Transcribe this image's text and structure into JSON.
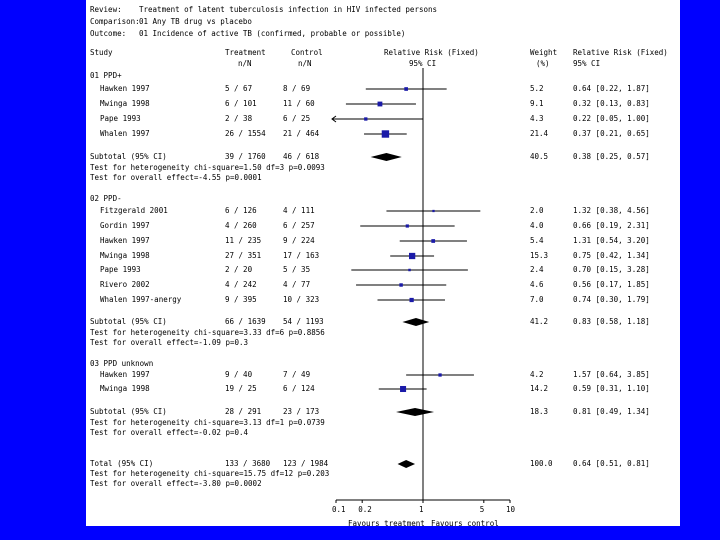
{
  "header": {
    "review_label": "Review:",
    "review_value": "Treatment of latent tuberculosis infection in HIV infected persons",
    "comparison_label": "Comparison:",
    "comparison_value": "01 Any TB drug vs placebo",
    "outcome_label": "Outcome:",
    "outcome_value": "01 Incidence of active TB (confirmed, probable or possible)"
  },
  "columns": {
    "study": "Study",
    "treatment": "Treatment",
    "treatment_sub": "n/N",
    "control": "Control",
    "control_sub": "n/N",
    "rr": "Relative Risk (Fixed)",
    "rr_sub": "95% CI",
    "weight": "Weight",
    "weight_sub": "(%)",
    "rr2": "Relative Risk (Fixed)",
    "rr2_sub": "95% CI"
  },
  "colors": {
    "background": "#0000ff",
    "panel": "#ffffff",
    "marker": "#1a1aa8",
    "text": "#000000"
  },
  "chart_data": {
    "type": "forest",
    "axis": {
      "scale": "log",
      "ticks": [
        "0.1",
        "0.2",
        "1",
        "5",
        "10"
      ],
      "tick_values": [
        0.1,
        0.2,
        1,
        5,
        10
      ],
      "xlim": [
        0.1,
        10
      ]
    },
    "axis_labels": {
      "left": "Favours treatment",
      "right": "Favours control"
    },
    "groups": [
      {
        "name": "01 PPD+",
        "studies": [
          {
            "study": "Hawken 1997",
            "treatment": "5 / 67",
            "control": "8 / 69",
            "weight": "5.2",
            "ci_text": "0.64 [0.22, 1.87]",
            "rr": 0.64,
            "lo": 0.22,
            "hi": 1.87
          },
          {
            "study": "Mwinga 1998",
            "treatment": "6 / 101",
            "control": "11 / 60",
            "weight": "9.1",
            "ci_text": "0.32 [0.13, 0.83]",
            "rr": 0.32,
            "lo": 0.13,
            "hi": 0.83
          },
          {
            "study": "Pape 1993",
            "treatment": "2 / 38",
            "control": "6 / 25",
            "weight": "4.3",
            "ci_text": "0.22 [0.05, 1.00]",
            "rr": 0.22,
            "lo": 0.05,
            "hi": 1.0
          },
          {
            "study": "Whalen 1997",
            "treatment": "26 / 1554",
            "control": "21 / 464",
            "weight": "21.4",
            "ci_text": "0.37 [0.21, 0.65]",
            "rr": 0.37,
            "lo": 0.21,
            "hi": 0.65
          }
        ],
        "subtotal": {
          "label": "Subtotal (95% CI)",
          "treatment": "39 / 1760",
          "control": "46 / 618",
          "weight": "40.5",
          "ci_text": "0.38 [0.25, 0.57]",
          "rr": 0.38,
          "lo": 0.25,
          "hi": 0.57
        },
        "heterogeneity": "Test for heterogeneity chi-square=1.50 df=3 p=0.0093",
        "overall_effect": "Test for overall effect=-4.55 p=0.0001"
      },
      {
        "name": "02 PPD-",
        "studies": [
          {
            "study": "Fitzgerald 2001",
            "treatment": "6 / 126",
            "control": "4 / 111",
            "weight": "2.0",
            "ci_text": "1.32 [0.38, 4.56]",
            "rr": 1.32,
            "lo": 0.38,
            "hi": 4.56
          },
          {
            "study": "Gordin 1997",
            "treatment": "4 / 260",
            "control": "6 / 257",
            "weight": "4.0",
            "ci_text": "0.66 [0.19, 2.31]",
            "rr": 0.66,
            "lo": 0.19,
            "hi": 2.31
          },
          {
            "study": "Hawken 1997",
            "treatment": "11 / 235",
            "control": "9 / 224",
            "weight": "5.4",
            "ci_text": "1.31 [0.54, 3.20]",
            "rr": 1.31,
            "lo": 0.54,
            "hi": 3.2
          },
          {
            "study": "Mwinga 1998",
            "treatment": "27 / 351",
            "control": "17 / 163",
            "weight": "15.3",
            "ci_text": "0.75 [0.42, 1.34]",
            "rr": 0.75,
            "lo": 0.42,
            "hi": 1.34
          },
          {
            "study": "Pape 1993",
            "treatment": "2 / 20",
            "control": "5 / 35",
            "weight": "2.4",
            "ci_text": "0.70 [0.15, 3.28]",
            "rr": 0.7,
            "lo": 0.15,
            "hi": 3.28
          },
          {
            "study": "Rivero 2002",
            "treatment": "4 / 242",
            "control": "4 / 77",
            "weight": "4.6",
            "ci_text": "0.56 [0.17, 1.85]",
            "rr": 0.56,
            "lo": 0.17,
            "hi": 1.85
          },
          {
            "study": "Whalen 1997-anergy",
            "treatment": "9 / 395",
            "control": "10 / 323",
            "weight": "7.0",
            "ci_text": "0.74 [0.30, 1.79]",
            "rr": 0.74,
            "lo": 0.3,
            "hi": 1.79
          }
        ],
        "subtotal": {
          "label": "Subtotal (95% CI)",
          "treatment": "66 / 1639",
          "control": "54 / 1193",
          "weight": "41.2",
          "ci_text": "0.83 [0.58, 1.18]",
          "rr": 0.83,
          "lo": 0.58,
          "hi": 1.18
        },
        "heterogeneity": "Test for heterogeneity chi-square=3.33 df=6 p=0.8856",
        "overall_effect": "Test for overall effect=-1.09 p=0.3"
      },
      {
        "name": "03 PPD unknown",
        "studies": [
          {
            "study": "Hawken 1997",
            "treatment": "9 / 40",
            "control": "7 / 49",
            "weight": "4.2",
            "ci_text": "1.57 [0.64, 3.85]",
            "rr": 1.57,
            "lo": 0.64,
            "hi": 3.85
          },
          {
            "study": "Mwinga 1998",
            "treatment": "19 / 25",
            "control": "6 / 124",
            "weight": "14.2",
            "ci_text": "0.59 [0.31, 1.10]",
            "rr": 0.59,
            "lo": 0.31,
            "hi": 1.1
          }
        ],
        "subtotal": {
          "label": "Subtotal (95% CI)",
          "treatment": "28 / 291",
          "control": "23 / 173",
          "weight": "18.3",
          "ci_text": "0.81 [0.49, 1.34]",
          "rr": 0.81,
          "lo": 0.49,
          "hi": 1.34
        },
        "heterogeneity": "Test for heterogeneity chi-square=3.13 df=1 p=0.0739",
        "overall_effect": "Test for overall effect=-0.02 p=0.4"
      }
    ],
    "total": {
      "label": "Total (95% CI)",
      "treatment": "133 / 3680",
      "control": "123 / 1984",
      "weight": "100.0",
      "ci_text": "0.64 [0.51, 0.81]",
      "rr": 0.64,
      "lo": 0.51,
      "hi": 0.81,
      "heterogeneity": "Test for heterogeneity chi-square=15.75 df=12 p=0.203",
      "overall_effect": "Test for overall effect=-3.80 p=0.0002"
    }
  }
}
